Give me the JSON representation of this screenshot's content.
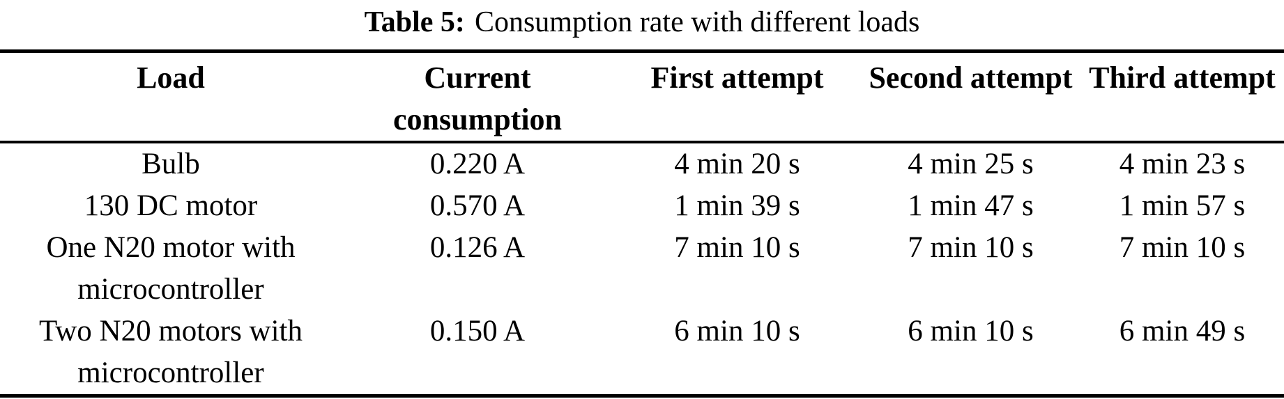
{
  "caption": {
    "label": "Table 5:",
    "text": "Consumption rate with different loads"
  },
  "table": {
    "columns": [
      "Load",
      "Current\nconsumption",
      "First attempt",
      "Second attempt",
      "Third attempt"
    ],
    "rows": [
      {
        "cells": [
          "Bulb",
          "0.220 A",
          "4 min 20 s",
          "4 min 25 s",
          "4 min 23 s"
        ]
      },
      {
        "cells": [
          "130 DC motor",
          "0.570 A",
          "1 min 39 s",
          "1 min 47 s",
          "1 min 57 s"
        ]
      },
      {
        "cells": [
          "One N20 motor with\nmicrocontroller",
          "0.126 A",
          "7 min 10 s",
          "7 min 10 s",
          "7 min 10 s"
        ]
      },
      {
        "cells": [
          "Two N20 motors with\nmicrocontroller",
          "0.150 A",
          "6 min 10 s",
          "6 min 10 s",
          "6 min 49 s"
        ]
      }
    ]
  },
  "colors": {
    "text": "#000000",
    "background": "#ffffff",
    "rule": "#000000"
  },
  "chart_data": {
    "type": "table",
    "title": "Table 5: Consumption rate with different loads",
    "columns": [
      "Load",
      "Current consumption",
      "First attempt",
      "Second attempt",
      "Third attempt"
    ],
    "rows": [
      [
        "Bulb",
        "0.220 A",
        "4 min 20 s",
        "4 min 25 s",
        "4 min 23 s"
      ],
      [
        "130 DC motor",
        "0.570 A",
        "1 min 39 s",
        "1 min 47 s",
        "1 min 57 s"
      ],
      [
        "One N20 motor with microcontroller",
        "0.126 A",
        "7 min 10 s",
        "7 min 10 s",
        "7 min 10 s"
      ],
      [
        "Two N20 motors with microcontroller",
        "0.150 A",
        "6 min 10 s",
        "6 min 10 s",
        "6 min 49 s"
      ]
    ]
  }
}
